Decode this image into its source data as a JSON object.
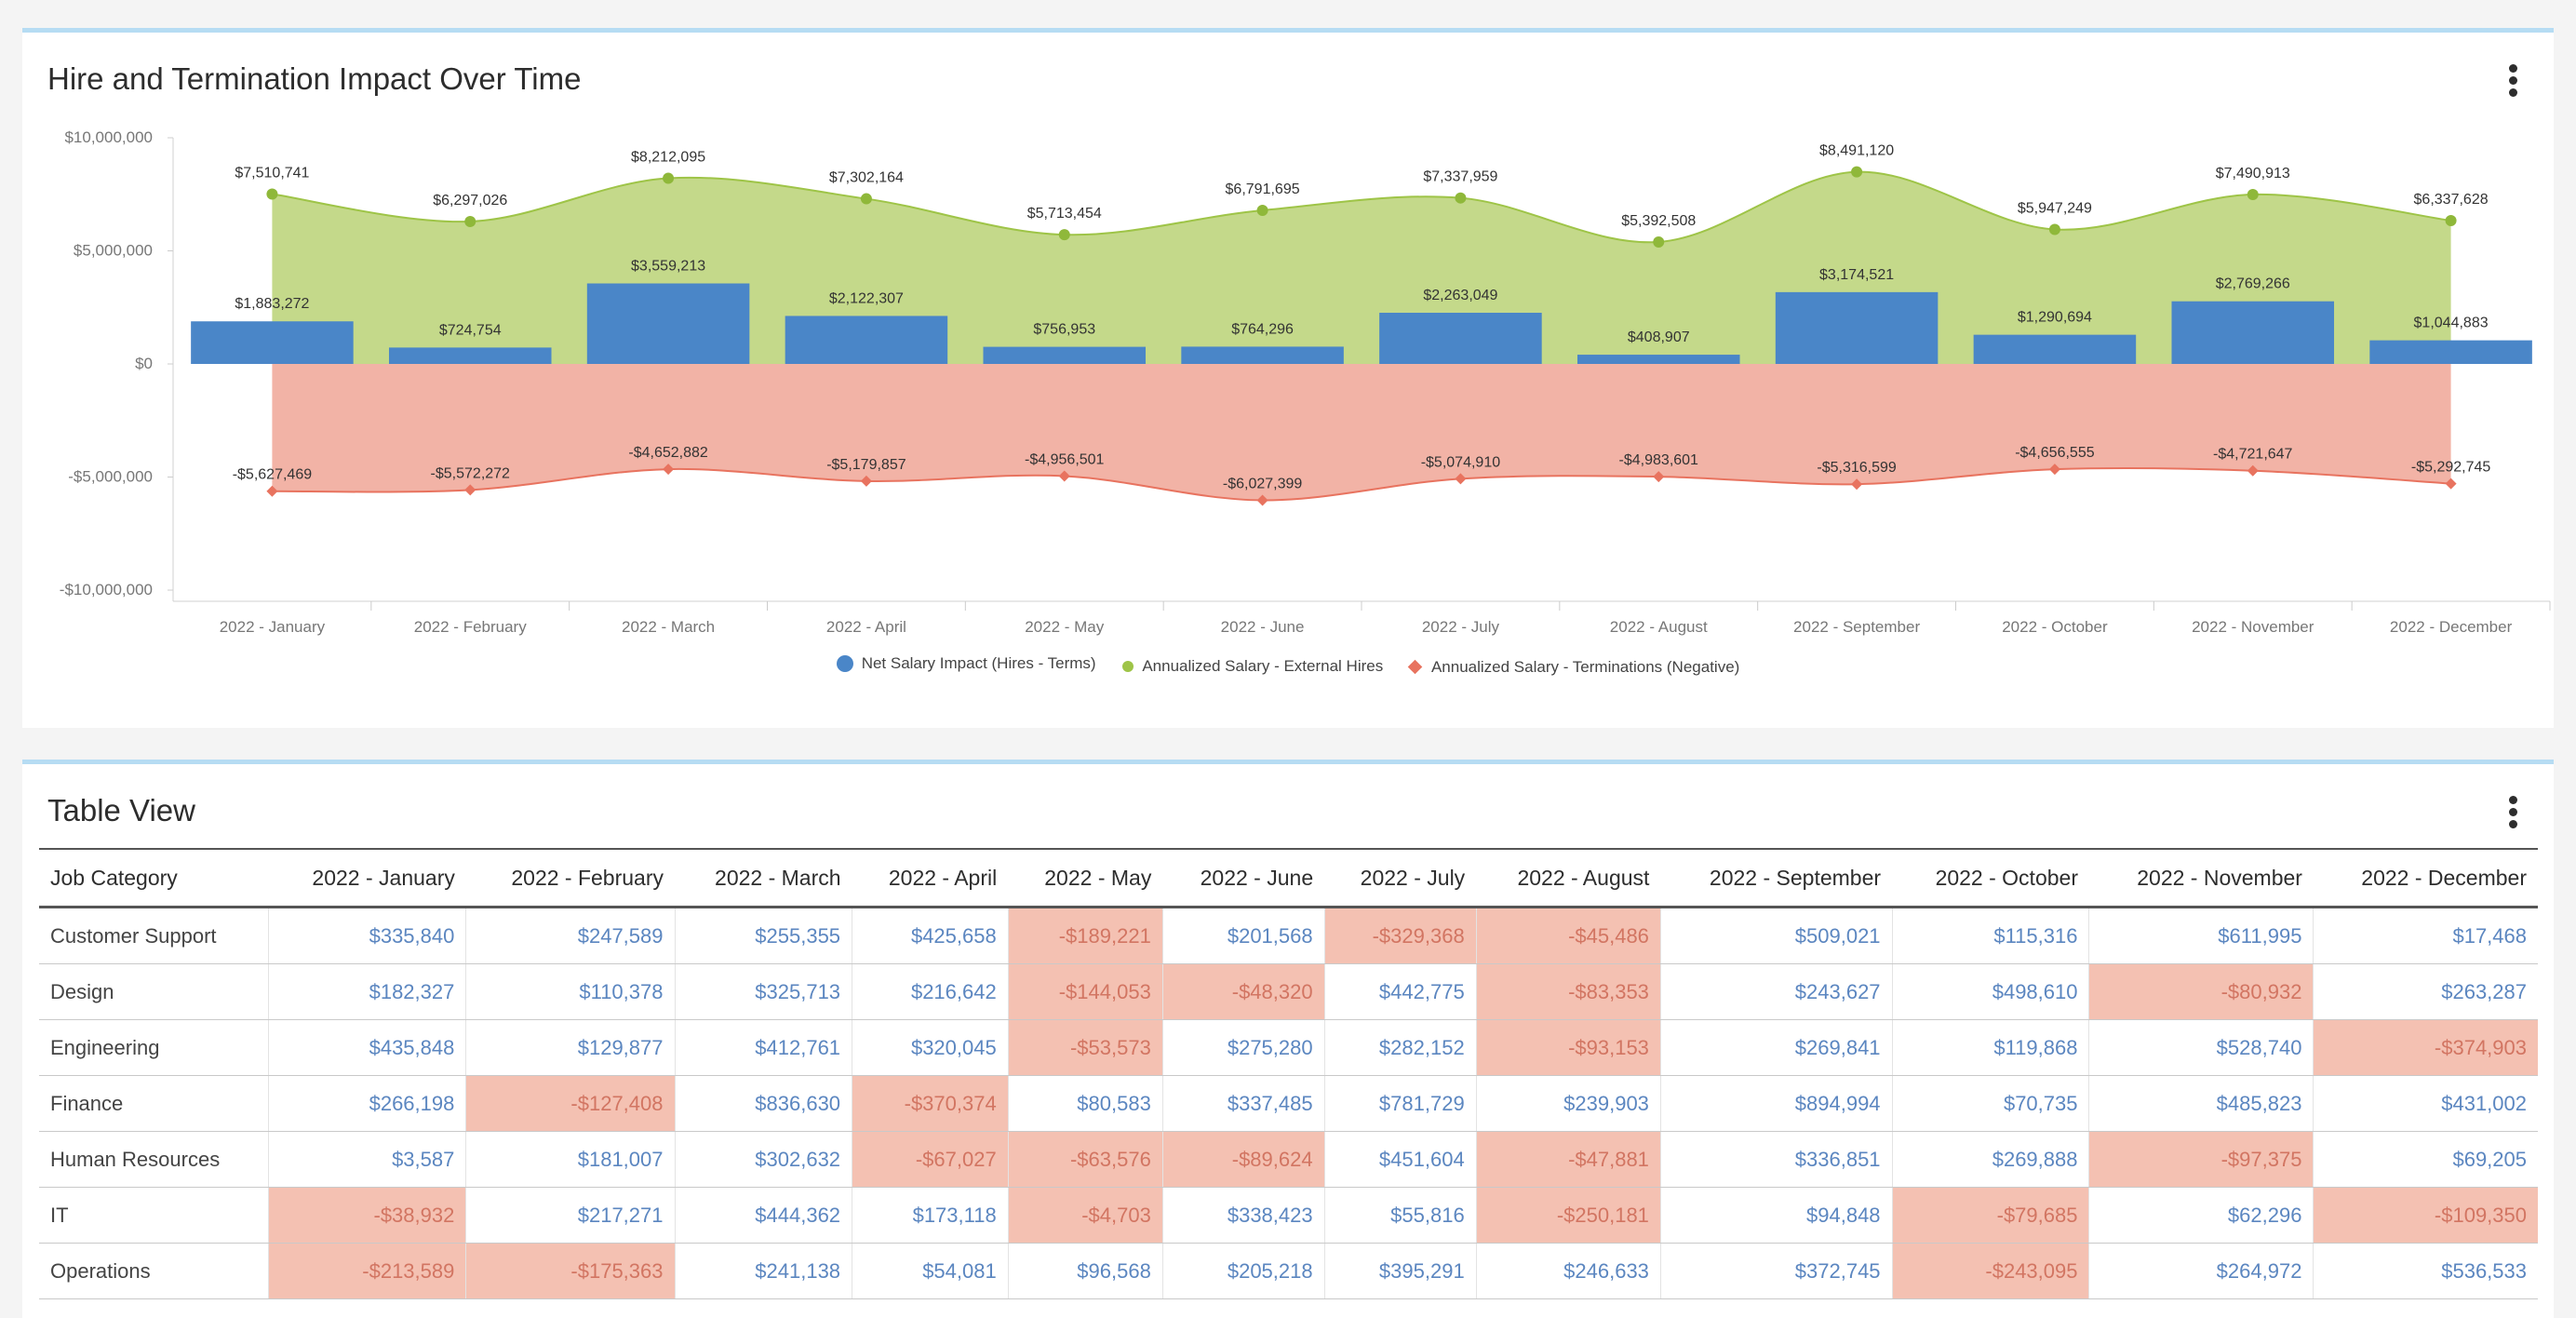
{
  "chart_card": {
    "title": "Hire and Termination Impact Over Time"
  },
  "chart_data": {
    "type": "bar",
    "title": "Hire and Termination Impact Over Time",
    "categories": [
      "2022 - January",
      "2022 - February",
      "2022 - March",
      "2022 - April",
      "2022 - May",
      "2022 - June",
      "2022 - July",
      "2022 - August",
      "2022 - September",
      "2022 - October",
      "2022 - November",
      "2022 - December"
    ],
    "ylim": [
      -10000000,
      10000000
    ],
    "yticks": [
      {
        "value": 10000000,
        "label": "$10,000,000"
      },
      {
        "value": 5000000,
        "label": "$5,000,000"
      },
      {
        "value": 0,
        "label": "$0"
      },
      {
        "value": -5000000,
        "label": "-$5,000,000"
      },
      {
        "value": -10000000,
        "label": "-$10,000,000"
      }
    ],
    "series": [
      {
        "name": "Net Salary Impact (Hires - Terms)",
        "kind": "bar",
        "color": "#4a86c8",
        "values": [
          1883272,
          724754,
          3559213,
          2122307,
          756953,
          764296,
          2263049,
          408907,
          3174521,
          1290694,
          2769266,
          1044883
        ],
        "labels": [
          "$1,883,272",
          "$724,754",
          "$3,559,213",
          "$2,122,307",
          "$756,953",
          "$764,296",
          "$2,263,049",
          "$408,907",
          "$3,174,521",
          "$1,290,694",
          "$2,769,266",
          "$1,044,883"
        ]
      },
      {
        "name": "Annualized Salary - External Hires",
        "kind": "area",
        "color": "#9ec447",
        "values": [
          7510741,
          6297026,
          8212095,
          7302164,
          5713454,
          6791695,
          7337959,
          5392508,
          8491120,
          5947249,
          7490913,
          6337628
        ],
        "labels": [
          "$7,510,741",
          "$6,297,026",
          "$8,212,095",
          "$7,302,164",
          "$5,713,454",
          "$6,791,695",
          "$7,337,959",
          "$5,392,508",
          "$8,491,120",
          "$5,947,249",
          "$7,490,913",
          "$6,337,628"
        ]
      },
      {
        "name": "Annualized Salary - Terminations (Negative)",
        "kind": "area",
        "color": "#e8735f",
        "values": [
          -5627469,
          -5572272,
          -4652882,
          -5179857,
          -4956501,
          -6027399,
          -5074910,
          -4983601,
          -5316599,
          -4656555,
          -4721647,
          -5292745
        ],
        "labels": [
          "-$5,627,469",
          "-$5,572,272",
          "-$4,652,882",
          "-$5,179,857",
          "-$4,956,501",
          "-$6,027,399",
          "-$5,074,910",
          "-$4,983,601",
          "-$5,316,599",
          "-$4,656,555",
          "-$4,721,647",
          "-$5,292,745"
        ]
      }
    ],
    "legend_position": "bottom-center"
  },
  "table_card": {
    "title": "Table View",
    "columns": [
      "Job Category",
      "2022 - January",
      "2022 - February",
      "2022 - March",
      "2022 - April",
      "2022 - May",
      "2022 - June",
      "2022 - July",
      "2022 - August",
      "2022 - September",
      "2022 - October",
      "2022 - November",
      "2022 - December"
    ],
    "rows": [
      {
        "category": "Customer Support",
        "values": [
          "$335,840",
          "$247,589",
          "$255,355",
          "$425,658",
          "-$189,221",
          "$201,568",
          "-$329,368",
          "-$45,486",
          "$509,021",
          "$115,316",
          "$611,995",
          "$17,468"
        ]
      },
      {
        "category": "Design",
        "values": [
          "$182,327",
          "$110,378",
          "$325,713",
          "$216,642",
          "-$144,053",
          "-$48,320",
          "$442,775",
          "-$83,353",
          "$243,627",
          "$498,610",
          "-$80,932",
          "$263,287"
        ]
      },
      {
        "category": "Engineering",
        "values": [
          "$435,848",
          "$129,877",
          "$412,761",
          "$320,045",
          "-$53,573",
          "$275,280",
          "$282,152",
          "-$93,153",
          "$269,841",
          "$119,868",
          "$528,740",
          "-$374,903"
        ]
      },
      {
        "category": "Finance",
        "values": [
          "$266,198",
          "-$127,408",
          "$836,630",
          "-$370,374",
          "$80,583",
          "$337,485",
          "$781,729",
          "$239,903",
          "$894,994",
          "$70,735",
          "$485,823",
          "$431,002"
        ]
      },
      {
        "category": "Human Resources",
        "values": [
          "$3,587",
          "$181,007",
          "$302,632",
          "-$67,027",
          "-$63,576",
          "-$89,624",
          "$451,604",
          "-$47,881",
          "$336,851",
          "$269,888",
          "-$97,375",
          "$69,205"
        ]
      },
      {
        "category": "IT",
        "values": [
          "-$38,932",
          "$217,271",
          "$444,362",
          "$173,118",
          "-$4,703",
          "$338,423",
          "$55,816",
          "-$250,181",
          "$94,848",
          "-$79,685",
          "$62,296",
          "-$109,350"
        ]
      },
      {
        "category": "Operations",
        "values": [
          "-$213,589",
          "-$175,363",
          "$241,138",
          "$54,081",
          "$96,568",
          "$205,218",
          "$395,291",
          "$246,633",
          "$372,745",
          "-$243,095",
          "$264,972",
          "$536,533"
        ]
      }
    ]
  }
}
